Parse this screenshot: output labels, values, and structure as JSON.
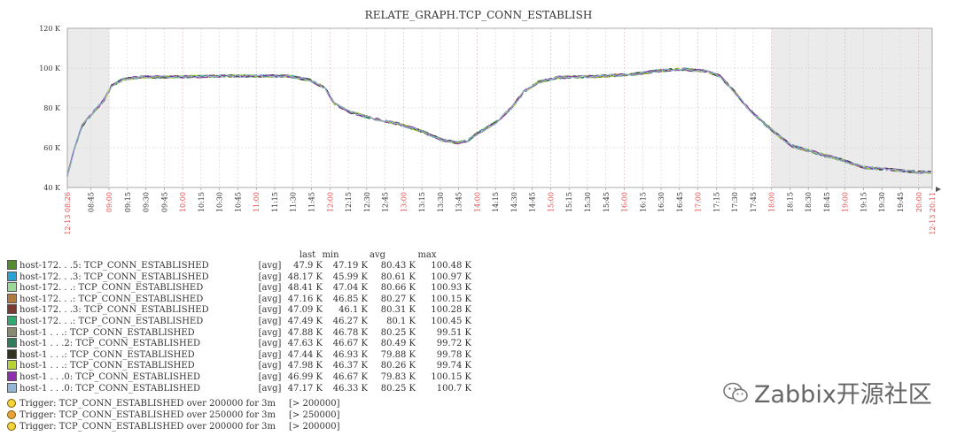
{
  "chart_data": {
    "type": "line",
    "title": "RELATE_GRAPH.TCP_CONN_ESTABLISH",
    "y_ticks": [
      "120 K",
      "100 K",
      "80 K",
      "60 K",
      "40 K"
    ],
    "y_min": 40000,
    "y_max": 120000,
    "x_tick_labels": [
      {
        "label": "12-13 08:26",
        "t": 0,
        "red": true
      },
      {
        "label": "08:45",
        "t": 19,
        "red": false
      },
      {
        "label": "09:00",
        "t": 34,
        "red": true
      },
      {
        "label": "09:15",
        "t": 49,
        "red": false
      },
      {
        "label": "09:30",
        "t": 64,
        "red": false
      },
      {
        "label": "09:45",
        "t": 79,
        "red": false
      },
      {
        "label": "10:00",
        "t": 94,
        "red": true
      },
      {
        "label": "10:15",
        "t": 109,
        "red": false
      },
      {
        "label": "10:30",
        "t": 124,
        "red": false
      },
      {
        "label": "10:45",
        "t": 139,
        "red": false
      },
      {
        "label": "11:00",
        "t": 154,
        "red": true
      },
      {
        "label": "11:15",
        "t": 169,
        "red": false
      },
      {
        "label": "11:30",
        "t": 184,
        "red": false
      },
      {
        "label": "11:45",
        "t": 199,
        "red": false
      },
      {
        "label": "12:00",
        "t": 214,
        "red": true
      },
      {
        "label": "12:15",
        "t": 229,
        "red": false
      },
      {
        "label": "12:30",
        "t": 244,
        "red": false
      },
      {
        "label": "12:45",
        "t": 259,
        "red": false
      },
      {
        "label": "13:00",
        "t": 274,
        "red": true
      },
      {
        "label": "13:15",
        "t": 289,
        "red": false
      },
      {
        "label": "13:30",
        "t": 304,
        "red": false
      },
      {
        "label": "13:45",
        "t": 319,
        "red": false
      },
      {
        "label": "14:00",
        "t": 334,
        "red": true
      },
      {
        "label": "14:15",
        "t": 349,
        "red": false
      },
      {
        "label": "14:30",
        "t": 364,
        "red": false
      },
      {
        "label": "14:45",
        "t": 379,
        "red": false
      },
      {
        "label": "15:00",
        "t": 394,
        "red": true
      },
      {
        "label": "15:15",
        "t": 409,
        "red": false
      },
      {
        "label": "15:30",
        "t": 424,
        "red": false
      },
      {
        "label": "15:45",
        "t": 439,
        "red": false
      },
      {
        "label": "16:00",
        "t": 454,
        "red": true
      },
      {
        "label": "16:15",
        "t": 469,
        "red": false
      },
      {
        "label": "16:30",
        "t": 484,
        "red": false
      },
      {
        "label": "16:45",
        "t": 499,
        "red": false
      },
      {
        "label": "17:00",
        "t": 514,
        "red": true
      },
      {
        "label": "17:15",
        "t": 529,
        "red": false
      },
      {
        "label": "17:30",
        "t": 544,
        "red": false
      },
      {
        "label": "17:45",
        "t": 559,
        "red": false
      },
      {
        "label": "18:00",
        "t": 574,
        "red": true
      },
      {
        "label": "18:15",
        "t": 589,
        "red": false
      },
      {
        "label": "18:30",
        "t": 604,
        "red": false
      },
      {
        "label": "18:45",
        "t": 619,
        "red": false
      },
      {
        "label": "19:00",
        "t": 634,
        "red": true
      },
      {
        "label": "19:15",
        "t": 649,
        "red": false
      },
      {
        "label": "19:30",
        "t": 664,
        "red": false
      },
      {
        "label": "19:45",
        "t": 679,
        "red": false
      },
      {
        "label": "20:00",
        "t": 694,
        "red": true
      },
      {
        "label": "12-13 20:11",
        "t": 705,
        "red": true
      }
    ],
    "x_range": [
      0,
      705
    ],
    "shaded_ranges": [
      [
        0,
        34
      ],
      [
        574,
        705
      ]
    ],
    "trend": [
      {
        "t": 0,
        "v": 46000
      },
      {
        "t": 6,
        "v": 60000
      },
      {
        "t": 12,
        "v": 71000
      },
      {
        "t": 20,
        "v": 77000
      },
      {
        "t": 30,
        "v": 84000
      },
      {
        "t": 36,
        "v": 91000
      },
      {
        "t": 46,
        "v": 94500
      },
      {
        "t": 60,
        "v": 95500
      },
      {
        "t": 80,
        "v": 95500
      },
      {
        "t": 100,
        "v": 95700
      },
      {
        "t": 130,
        "v": 96000
      },
      {
        "t": 160,
        "v": 96000
      },
      {
        "t": 180,
        "v": 96000
      },
      {
        "t": 198,
        "v": 94000
      },
      {
        "t": 210,
        "v": 90000
      },
      {
        "t": 218,
        "v": 82000
      },
      {
        "t": 230,
        "v": 78000
      },
      {
        "t": 250,
        "v": 74500
      },
      {
        "t": 270,
        "v": 72000
      },
      {
        "t": 290,
        "v": 68000
      },
      {
        "t": 305,
        "v": 64000
      },
      {
        "t": 318,
        "v": 62500
      },
      {
        "t": 326,
        "v": 63500
      },
      {
        "t": 334,
        "v": 67000
      },
      {
        "t": 350,
        "v": 73000
      },
      {
        "t": 362,
        "v": 80000
      },
      {
        "t": 372,
        "v": 88000
      },
      {
        "t": 384,
        "v": 93000
      },
      {
        "t": 400,
        "v": 95300
      },
      {
        "t": 430,
        "v": 95800
      },
      {
        "t": 460,
        "v": 96800
      },
      {
        "t": 480,
        "v": 98500
      },
      {
        "t": 500,
        "v": 99500
      },
      {
        "t": 520,
        "v": 98500
      },
      {
        "t": 532,
        "v": 96000
      },
      {
        "t": 544,
        "v": 88000
      },
      {
        "t": 556,
        "v": 79000
      },
      {
        "t": 574,
        "v": 69000
      },
      {
        "t": 590,
        "v": 61000
      },
      {
        "t": 610,
        "v": 57500
      },
      {
        "t": 630,
        "v": 54000
      },
      {
        "t": 650,
        "v": 50000
      },
      {
        "t": 670,
        "v": 49000
      },
      {
        "t": 690,
        "v": 48000
      },
      {
        "t": 705,
        "v": 47500
      }
    ],
    "series": [
      {
        "name": "host-172.  .  .5: TCP_CONN_ESTABLISHED",
        "color": "#558b2f",
        "last": "47.9 K",
        "min": "47.19 K",
        "avg": "80.43 K",
        "max": "100.48 K"
      },
      {
        "name": "host-172.  .  .3: TCP_CONN_ESTABLISHED",
        "color": "#29a3d6",
        "last": "48.17 K",
        "min": "45.99 K",
        "avg": "80.61 K",
        "max": "100.97 K"
      },
      {
        "name": "host-172.  .  .: TCP_CONN_ESTABLISHED",
        "color": "#9ad89a",
        "last": "48.41 K",
        "min": "47.04 K",
        "avg": "80.66 K",
        "max": "100.93 K"
      },
      {
        "name": "host-172.  .  .: TCP_CONN_ESTABLISHED",
        "color": "#b37a3d",
        "last": "47.16 K",
        "min": "46.85 K",
        "avg": "80.27 K",
        "max": "100.15 K"
      },
      {
        "name": "host-172.  .  .3: TCP_CONN_ESTABLISHED",
        "color": "#7a3b2e",
        "last": "47.09 K",
        "min": "46.1 K",
        "avg": "80.31 K",
        "max": "100.28 K"
      },
      {
        "name": "host-172.  .  .: TCP_CONN_ESTABLISHED",
        "color": "#2eaa6e",
        "last": "47.49 K",
        "min": "46.27 K",
        "avg": "80.1 K",
        "max": "100.45 K"
      },
      {
        "name": "host-1  .  .  .: TCP_CONN_ESTABLISHED",
        "color": "#8a8a6e",
        "last": "47.88 K",
        "min": "46.78 K",
        "avg": "80.25 K",
        "max": "99.51 K"
      },
      {
        "name": "host-1  .  .  .2: TCP_CONN_ESTABLISHED",
        "color": "#2e7d5b",
        "last": "47.63 K",
        "min": "46.67 K",
        "avg": "80.49 K",
        "max": "99.72 K"
      },
      {
        "name": "host-1  .  .  .: TCP_CONN_ESTABLISHED",
        "color": "#333322",
        "last": "47.44 K",
        "min": "46.93 K",
        "avg": "79.88 K",
        "max": "99.78 K"
      },
      {
        "name": "host-1  .  .  .: TCP_CONN_ESTABLISHED",
        "color": "#b5d334",
        "last": "47.98 K",
        "min": "46.37 K",
        "avg": "80.26 K",
        "max": "99.74 K"
      },
      {
        "name": "host-1  .  .  .0: TCP_CONN_ESTABLISHED",
        "color": "#8e2fb3",
        "last": "46.99 K",
        "min": "46.67 K",
        "avg": "79.83 K",
        "max": "100.15 K"
      },
      {
        "name": "host-1  .  .  .0: TCP_CONN_ESTABLISHED",
        "color": "#8fb7d9",
        "last": "47.17 K",
        "min": "46.33 K",
        "avg": "80.25 K",
        "max": "100.7 K"
      }
    ]
  },
  "legend": {
    "func_label": "[avg]",
    "col_last": "last",
    "col_min": "min",
    "col_avg": "avg",
    "col_max": "max"
  },
  "triggers": [
    {
      "text": "Trigger: TCP_CONN_ESTABLISHED over 200000 for 3m",
      "value": "[> 200000]",
      "color": "#f5d33a"
    },
    {
      "text": "Trigger: TCP_CONN_ESTABLISHED over 250000 for 3m",
      "value": "[> 250000]",
      "color": "#e8a33a"
    },
    {
      "text": "Trigger: TCP_CONN_ESTABLISHED over 200000 for 3m",
      "value": "[> 200000]",
      "color": "#f5d33a"
    }
  ],
  "watermark": {
    "text": "Zabbix开源社区"
  }
}
